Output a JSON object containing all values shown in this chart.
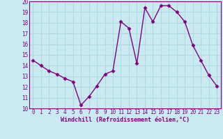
{
  "x": [
    0,
    1,
    2,
    3,
    4,
    5,
    6,
    7,
    8,
    9,
    10,
    11,
    12,
    13,
    14,
    15,
    16,
    17,
    18,
    19,
    20,
    21,
    22,
    23
  ],
  "y": [
    14.5,
    14.0,
    13.5,
    13.2,
    12.8,
    12.5,
    10.3,
    11.1,
    12.1,
    13.2,
    13.5,
    18.1,
    17.5,
    14.2,
    19.4,
    18.1,
    19.6,
    19.6,
    19.0,
    18.1,
    15.9,
    14.5,
    13.1,
    12.1
  ],
  "line_color": "#800080",
  "marker": "D",
  "marker_size": 2.5,
  "line_width": 1.0,
  "bg_color": "#c8eaf0",
  "grid_color": "#b0d8e0",
  "xlabel": "Windchill (Refroidissement éolien,°C)",
  "xlabel_color": "#800080",
  "tick_color": "#800080",
  "ylim": [
    10,
    20
  ],
  "xlim": [
    -0.5,
    23.5
  ],
  "yticks": [
    10,
    11,
    12,
    13,
    14,
    15,
    16,
    17,
    18,
    19,
    20
  ],
  "xticks": [
    0,
    1,
    2,
    3,
    4,
    5,
    6,
    7,
    8,
    9,
    10,
    11,
    12,
    13,
    14,
    15,
    16,
    17,
    18,
    19,
    20,
    21,
    22,
    23
  ],
  "tick_fontsize": 5.5,
  "label_fontsize": 6.0
}
